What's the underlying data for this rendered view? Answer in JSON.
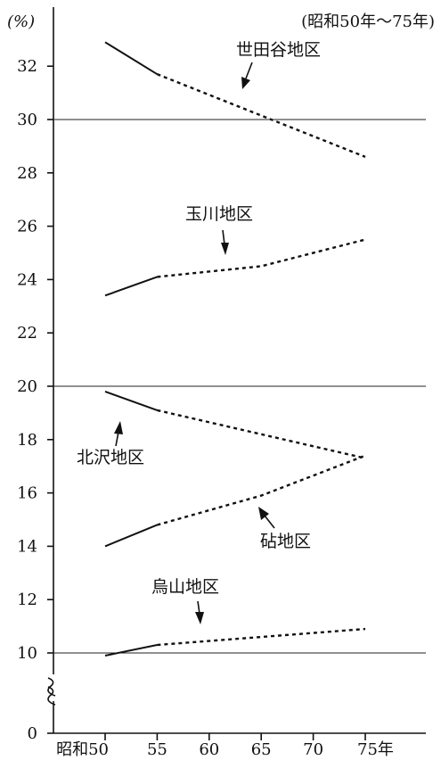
{
  "chart_data": {
    "type": "line",
    "unit_label": "(%)",
    "period_label": "(昭和50年～75年)",
    "x": [
      "昭和50",
      "55",
      "60",
      "65",
      "70",
      "75年"
    ],
    "x_values": [
      50,
      55,
      60,
      65,
      70,
      75
    ],
    "ylim": [
      0,
      33
    ],
    "y_axis_break": true,
    "y_ticks": [
      "10",
      "12",
      "14",
      "16",
      "18",
      "20",
      "22",
      "24",
      "26",
      "28",
      "30",
      "32"
    ],
    "y_zero_label": "0",
    "reference_lines": [
      10,
      20,
      30
    ],
    "solid_segment": "昭和50–55",
    "dotted_segment": "55–75",
    "series": [
      {
        "name": "世田谷地区",
        "values": [
          32.9,
          31.7,
          null,
          null,
          null,
          28.6
        ]
      },
      {
        "name": "玉川地区",
        "values": [
          23.4,
          24.1,
          null,
          24.5,
          null,
          25.5
        ]
      },
      {
        "name": "北沢地区",
        "values": [
          19.8,
          19.1,
          null,
          null,
          null,
          17.3
        ]
      },
      {
        "name": "砧地区",
        "values": [
          14.0,
          14.8,
          null,
          15.9,
          null,
          17.4
        ]
      },
      {
        "name": "烏山地区",
        "values": [
          9.9,
          10.3,
          null,
          null,
          null,
          10.9
        ]
      }
    ]
  }
}
